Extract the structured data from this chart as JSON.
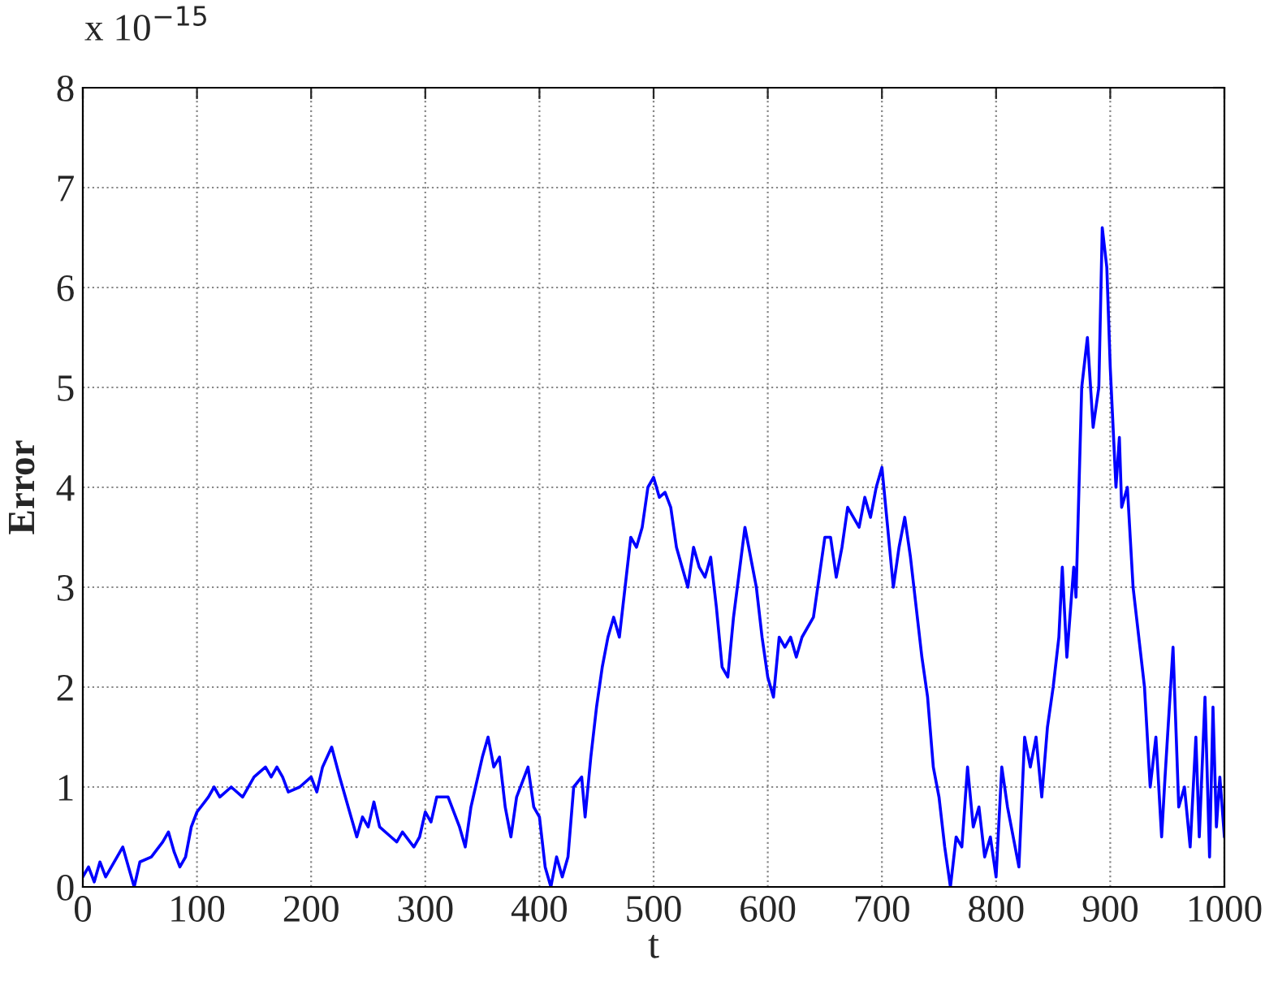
{
  "chart_data": {
    "type": "line",
    "xlabel": "t",
    "ylabel": "Error",
    "annotations": [
      "x 10$^{−15}$"
    ],
    "x": [
      0,
      5,
      10,
      15,
      20,
      30,
      35,
      40,
      45,
      50,
      60,
      70,
      75,
      80,
      85,
      90,
      95,
      100,
      110,
      115,
      120,
      130,
      140,
      150,
      160,
      165,
      170,
      175,
      180,
      190,
      200,
      205,
      210,
      218,
      225,
      235,
      240,
      245,
      250,
      255,
      260,
      270,
      275,
      280,
      290,
      295,
      300,
      305,
      310,
      320,
      330,
      335,
      340,
      350,
      355,
      360,
      365,
      370,
      375,
      380,
      390,
      395,
      400,
      405,
      410,
      415,
      420,
      425,
      430,
      437,
      440,
      445,
      450,
      455,
      460,
      465,
      470,
      475,
      480,
      485,
      490,
      495,
      500,
      505,
      510,
      515,
      520,
      525,
      530,
      535,
      540,
      545,
      550,
      555,
      560,
      565,
      570,
      580,
      585,
      590,
      595,
      600,
      605,
      610,
      615,
      620,
      625,
      630,
      640,
      650,
      655,
      660,
      665,
      670,
      680,
      685,
      690,
      695,
      700,
      705,
      710,
      715,
      720,
      725,
      730,
      735,
      740,
      745,
      750,
      755,
      760,
      765,
      770,
      775,
      780,
      785,
      790,
      795,
      800,
      805,
      810,
      815,
      820,
      825,
      830,
      835,
      840,
      845,
      850,
      855,
      858,
      862,
      868,
      870,
      875,
      880,
      885,
      890,
      893,
      897,
      900,
      905,
      908,
      910,
      915,
      920,
      925,
      930,
      935,
      940,
      945,
      948,
      955,
      960,
      965,
      970,
      975,
      978,
      983,
      987,
      990,
      993,
      996,
      1000
    ],
    "series": [
      {
        "color": "#0000ff",
        "values": [
          0.1,
          0.2,
          0.05,
          0.25,
          0.1,
          0.3,
          0.4,
          0.2,
          0.0,
          0.25,
          0.3,
          0.45,
          0.55,
          0.35,
          0.2,
          0.3,
          0.6,
          0.75,
          0.9,
          1.0,
          0.9,
          1.0,
          0.9,
          1.1,
          1.2,
          1.1,
          1.2,
          1.1,
          0.95,
          1.0,
          1.1,
          0.95,
          1.2,
          1.4,
          1.1,
          0.7,
          0.5,
          0.7,
          0.6,
          0.85,
          0.6,
          0.5,
          0.45,
          0.55,
          0.4,
          0.5,
          0.75,
          0.65,
          0.9,
          0.9,
          0.6,
          0.4,
          0.8,
          1.3,
          1.5,
          1.2,
          1.3,
          0.8,
          0.5,
          0.9,
          1.2,
          0.8,
          0.7,
          0.2,
          0.0,
          0.3,
          0.1,
          0.3,
          1.0,
          1.1,
          0.7,
          1.3,
          1.8,
          2.2,
          2.5,
          2.7,
          2.5,
          3.0,
          3.5,
          3.4,
          3.6,
          4.0,
          4.1,
          3.9,
          3.95,
          3.8,
          3.4,
          3.2,
          3.0,
          3.4,
          3.2,
          3.1,
          3.3,
          2.8,
          2.2,
          2.1,
          2.7,
          3.6,
          3.3,
          3.0,
          2.5,
          2.1,
          1.9,
          2.5,
          2.4,
          2.5,
          2.3,
          2.5,
          2.7,
          3.5,
          3.5,
          3.1,
          3.4,
          3.8,
          3.6,
          3.9,
          3.7,
          4.0,
          4.2,
          3.6,
          3.0,
          3.4,
          3.7,
          3.3,
          2.8,
          2.3,
          1.9,
          1.2,
          0.9,
          0.4,
          0.0,
          0.5,
          0.4,
          1.2,
          0.6,
          0.8,
          0.3,
          0.5,
          0.1,
          1.2,
          0.8,
          0.5,
          0.2,
          1.5,
          1.2,
          1.5,
          0.9,
          1.6,
          2.0,
          2.5,
          3.2,
          2.3,
          3.2,
          2.9,
          5.0,
          5.5,
          4.6,
          5.0,
          6.6,
          6.2,
          5.2,
          4.0,
          4.5,
          3.8,
          4.0,
          3.0,
          2.5,
          2.0,
          1.0,
          1.5,
          0.5,
          1.1,
          2.4,
          0.8,
          1.0,
          0.4,
          1.5,
          0.5,
          1.9,
          0.3,
          1.8,
          0.6,
          1.1,
          0.5
        ]
      }
    ],
    "xlim": [
      0,
      1000
    ],
    "xticks": [
      0,
      100,
      200,
      300,
      400,
      500,
      600,
      700,
      800,
      900,
      1000
    ],
    "ylim": [
      0,
      8
    ],
    "yticks": [
      0,
      1,
      2,
      3,
      4,
      5,
      6,
      7,
      8
    ],
    "grid": true,
    "line_style": "solid"
  }
}
